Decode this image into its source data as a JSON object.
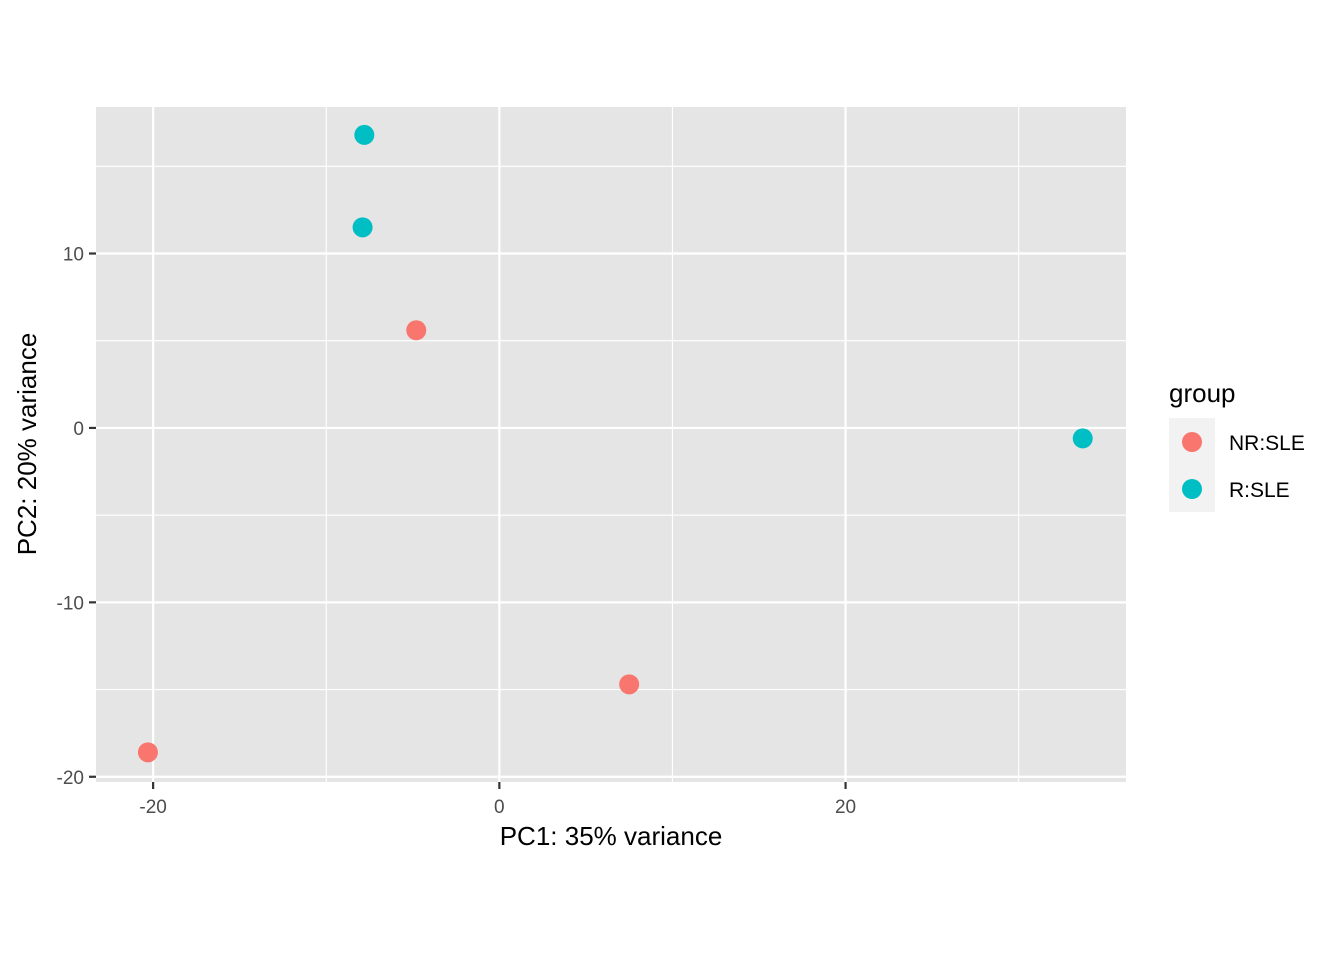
{
  "chart_data": {
    "type": "scatter",
    "xlabel": "PC1: 35% variance",
    "ylabel": "PC2: 20% variance",
    "xlim": [
      -23.3,
      36.2
    ],
    "ylim": [
      -20.3,
      18.4
    ],
    "x_ticks": [
      -20,
      0,
      20
    ],
    "x_tick_labels": [
      "-20",
      "0",
      "20"
    ],
    "x_minor_ticks": [
      -10,
      10,
      30
    ],
    "y_ticks": [
      -20,
      -10,
      0,
      10
    ],
    "y_tick_labels": [
      "-20",
      "-10",
      "0",
      "10"
    ],
    "y_minor_ticks": [
      -15,
      -5,
      5,
      15
    ],
    "grid": true,
    "panel_background": "#e5e5e5",
    "grid_color": "#ffffff",
    "legend": {
      "title": "group",
      "position": "right"
    },
    "series": [
      {
        "name": "NR:SLE",
        "color": "#f8766d",
        "points": [
          {
            "x": -4.8,
            "y": 5.6
          },
          {
            "x": 7.5,
            "y": -14.7
          },
          {
            "x": -20.3,
            "y": -18.6
          }
        ]
      },
      {
        "name": "R:SLE",
        "color": "#00bfc4",
        "points": [
          {
            "x": -7.8,
            "y": 16.8
          },
          {
            "x": -7.9,
            "y": 11.5
          },
          {
            "x": 33.7,
            "y": -0.6
          }
        ]
      }
    ]
  }
}
